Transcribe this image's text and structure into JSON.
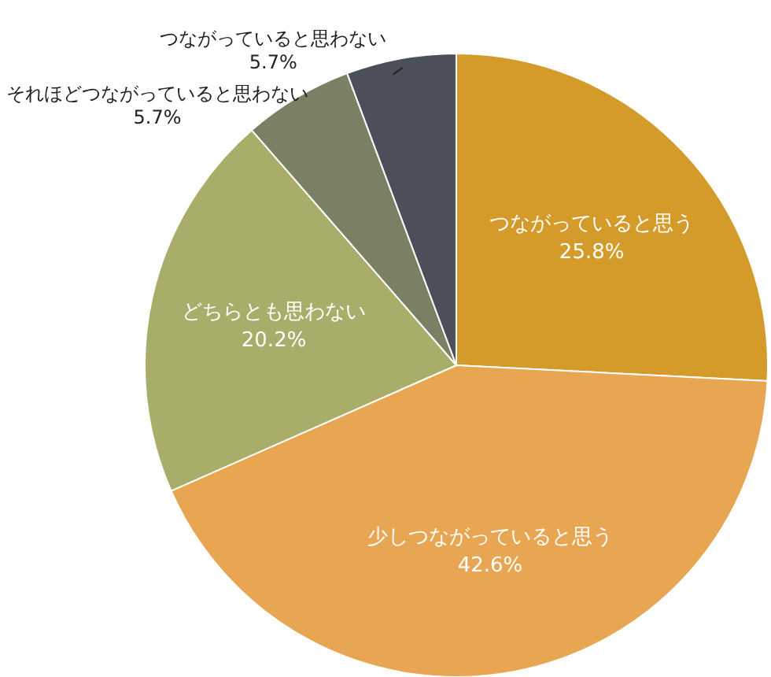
{
  "chart_data": {
    "type": "pie",
    "categories": [
      "つながっていると思う",
      "少しつながっていると思う",
      "どちらとも思わない",
      "それほどつながっていると思わない",
      "つながっていると思わない"
    ],
    "values": [
      25.8,
      42.6,
      20.2,
      5.7,
      5.7
    ],
    "colors": [
      "#d49a2a",
      "#e8a552",
      "#a8ad6a",
      "#7a8063",
      "#4a4f5a"
    ],
    "value_labels": [
      "25.8%",
      "42.6%",
      "20.2%",
      "5.7%",
      "5.7%"
    ]
  }
}
